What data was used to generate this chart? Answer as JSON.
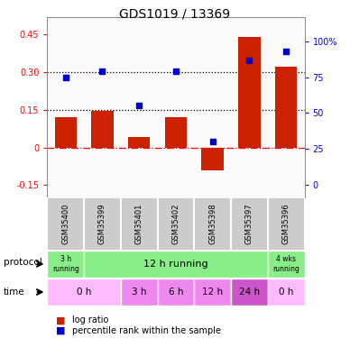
{
  "title": "GDS1019 / 13369",
  "samples": [
    "GSM35400",
    "GSM35399",
    "GSM35401",
    "GSM35402",
    "GSM35398",
    "GSM35397",
    "GSM35396"
  ],
  "log_ratio": [
    0.12,
    0.145,
    0.04,
    0.12,
    -0.09,
    0.44,
    0.32
  ],
  "percentile_rank_pct": [
    75,
    79,
    55,
    79,
    30,
    87,
    93
  ],
  "ylim_left": [
    -0.2,
    0.52
  ],
  "ylim_right": [
    -9.0,
    117.0
  ],
  "yticks_left": [
    -0.15,
    0.0,
    0.15,
    0.3,
    0.45
  ],
  "ytick_labels_left": [
    "-0.15",
    "0",
    "0.15",
    "0.30",
    "0.45"
  ],
  "yticks_right": [
    0,
    25,
    50,
    75,
    100
  ],
  "ytick_labels_right": [
    "0",
    "25",
    "50",
    "75",
    "100%"
  ],
  "hline_zero": 0.0,
  "hline_dotted": [
    0.15,
    0.3
  ],
  "bar_color": "#CC2200",
  "scatter_color": "#0000CC",
  "bg_color": "#FFFFFF",
  "sample_label_bg": "#CCCCCC",
  "bar_width": 0.6,
  "scatter_size": 22,
  "prot_color": "#88EE88",
  "prot_defs": [
    [
      0,
      1,
      "3 h\nrunning",
      true
    ],
    [
      1,
      6,
      "12 h running",
      false
    ],
    [
      6,
      7,
      "4 wks\nrunning",
      true
    ]
  ],
  "time_defs": [
    [
      0,
      2,
      "0 h",
      "#FFBBFF"
    ],
    [
      2,
      3,
      "3 h",
      "#EE88EE"
    ],
    [
      3,
      4,
      "6 h",
      "#EE88EE"
    ],
    [
      4,
      5,
      "12 h",
      "#EE88EE"
    ],
    [
      5,
      6,
      "24 h",
      "#CC55CC"
    ],
    [
      6,
      7,
      "0 h",
      "#FFBBFF"
    ]
  ]
}
